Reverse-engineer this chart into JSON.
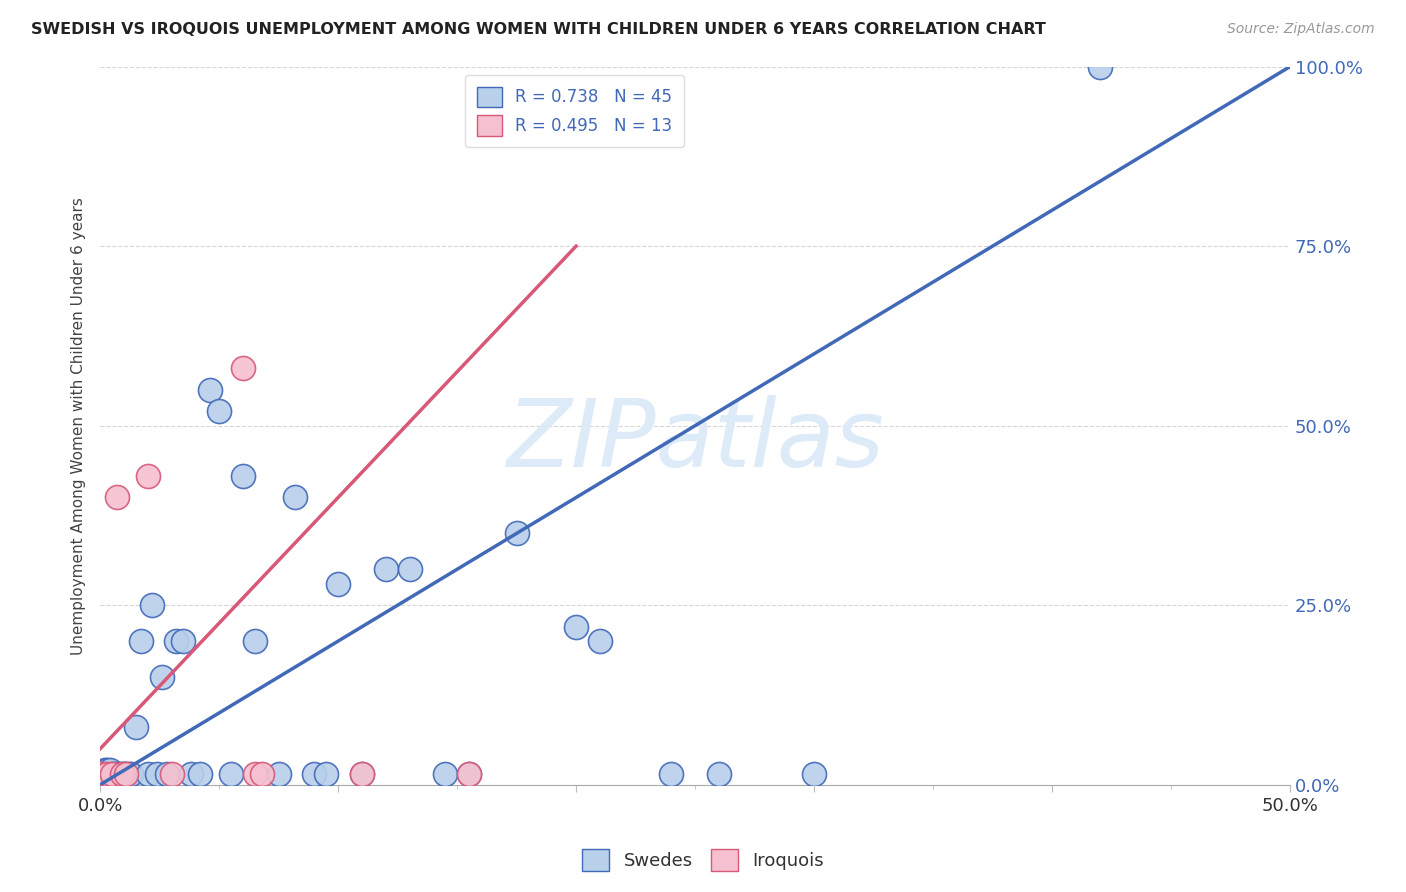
{
  "title": "SWEDISH VS IROQUOIS UNEMPLOYMENT AMONG WOMEN WITH CHILDREN UNDER 6 YEARS CORRELATION CHART",
  "source": "Source: ZipAtlas.com",
  "ylabel": "Unemployment Among Women with Children Under 6 years",
  "xlim": [
    0.0,
    0.5
  ],
  "ylim": [
    0.0,
    1.0
  ],
  "yticks": [
    0.0,
    0.25,
    0.5,
    0.75,
    1.0
  ],
  "ytick_labels": [
    "0.0%",
    "25.0%",
    "50.0%",
    "75.0%",
    "100.0%"
  ],
  "swedes_R": 0.738,
  "swedes_N": 45,
  "iroquois_R": 0.495,
  "iroquois_N": 13,
  "swedes_color": "#b8d0ea",
  "iroquois_color": "#f5c0d0",
  "swedes_line_color": "#4169b8",
  "iroquois_line_color": "#d85878",
  "watermark": "ZIPatlas",
  "watermark_color": "#ddeaf8",
  "background_color": "#ffffff",
  "swedes_x": [
    0.002,
    0.003,
    0.004,
    0.005,
    0.006,
    0.007,
    0.008,
    0.009,
    0.01,
    0.011,
    0.012,
    0.013,
    0.015,
    0.017,
    0.02,
    0.022,
    0.024,
    0.026,
    0.028,
    0.032,
    0.035,
    0.038,
    0.042,
    0.046,
    0.05,
    0.055,
    0.06,
    0.065,
    0.075,
    0.082,
    0.09,
    0.095,
    0.1,
    0.11,
    0.12,
    0.13,
    0.145,
    0.155,
    0.175,
    0.2,
    0.21,
    0.24,
    0.26,
    0.3,
    0.42
  ],
  "swedes_y": [
    0.02,
    0.02,
    0.02,
    0.015,
    0.015,
    0.015,
    0.015,
    0.015,
    0.015,
    0.015,
    0.015,
    0.015,
    0.08,
    0.2,
    0.015,
    0.25,
    0.015,
    0.15,
    0.015,
    0.2,
    0.2,
    0.015,
    0.015,
    0.55,
    0.52,
    0.015,
    0.43,
    0.2,
    0.015,
    0.4,
    0.015,
    0.015,
    0.28,
    0.015,
    0.3,
    0.3,
    0.015,
    0.015,
    0.35,
    0.22,
    0.2,
    0.015,
    0.015,
    0.015,
    1.0
  ],
  "iroquois_x": [
    0.001,
    0.003,
    0.005,
    0.007,
    0.009,
    0.011,
    0.02,
    0.03,
    0.06,
    0.065,
    0.068,
    0.11,
    0.155
  ],
  "iroquois_y": [
    0.015,
    0.015,
    0.015,
    0.4,
    0.015,
    0.015,
    0.43,
    0.015,
    0.58,
    0.015,
    0.015,
    0.015,
    0.015
  ],
  "swedes_line_x0": 0.0,
  "swedes_line_y0": 0.0,
  "swedes_line_x1": 0.5,
  "swedes_line_y1": 1.0,
  "iroquois_line_x0": 0.0,
  "iroquois_line_y0": 0.05,
  "iroquois_line_x1": 0.2,
  "iroquois_line_y1": 0.75,
  "ref_line_x": [
    0.0,
    0.5
  ],
  "ref_line_y": [
    0.0,
    1.0
  ]
}
